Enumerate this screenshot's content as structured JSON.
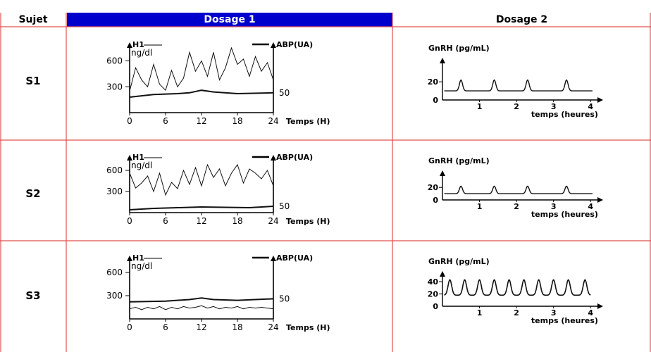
{
  "header": {
    "col_subject": "Sujet",
    "col_dosage1": "Dosage 1",
    "col_dosage2": "Dosage 2",
    "dosage1_color": "#0000cc",
    "border_color": "#e05050"
  },
  "rows": [
    {
      "subject": "S1"
    },
    {
      "subject": "S2"
    },
    {
      "subject": "S3"
    }
  ],
  "chart_data": [
    {
      "type": "line",
      "subject": "S1",
      "panel": "Dosage 1",
      "y_label_left": "H1",
      "y_unit_left": "ng/dl",
      "y_label_right": "ABP(UA)",
      "xlabel": "Temps (H)",
      "x_ticks": [
        "0",
        "6",
        "12",
        "18",
        "24"
      ],
      "y_ticks_left": [
        "600",
        "300"
      ],
      "y_tick_right": "50",
      "xlim": [
        0,
        24
      ],
      "ylim": [
        0,
        800
      ],
      "series": [
        {
          "name": "H1",
          "x": [
            0,
            1,
            2,
            3,
            4,
            5,
            6,
            7,
            8,
            9,
            10,
            11,
            12,
            13,
            14,
            15,
            16,
            17,
            18,
            19,
            20,
            21,
            22,
            23,
            24
          ],
          "values": [
            250,
            520,
            380,
            300,
            560,
            330,
            260,
            490,
            300,
            400,
            700,
            480,
            600,
            420,
            700,
            380,
            520,
            750,
            560,
            620,
            420,
            650,
            480,
            580,
            380
          ]
        },
        {
          "name": "ABP",
          "x": [
            0,
            4,
            8,
            10,
            12,
            14,
            18,
            24
          ],
          "values": [
            180,
            210,
            220,
            230,
            260,
            240,
            220,
            230
          ]
        }
      ]
    },
    {
      "type": "line",
      "subject": "S1",
      "panel": "Dosage 2",
      "title": "GnRH (pg/mL)",
      "xlabel": "temps (heures)",
      "x_ticks": [
        "1",
        "2",
        "3",
        "4"
      ],
      "y_ticks": [
        "20",
        "0"
      ],
      "xlim": [
        0,
        4.3
      ],
      "ylim": [
        0,
        45
      ],
      "pulses_at": [
        0.5,
        1.4,
        2.3,
        3.35
      ],
      "baseline": 10,
      "peak": 22
    },
    {
      "type": "line",
      "subject": "S2",
      "panel": "Dosage 1",
      "y_label_left": "H1",
      "y_unit_left": "ng/dl",
      "y_label_right": "ABP(UA)",
      "xlabel": "Temps (H)",
      "x_ticks": [
        "0",
        "6",
        "12",
        "18",
        "24"
      ],
      "y_ticks_left": [
        "600",
        "300"
      ],
      "y_tick_right": "50",
      "xlim": [
        0,
        24
      ],
      "ylim": [
        0,
        800
      ],
      "series": [
        {
          "name": "H1",
          "x": [
            0,
            1,
            2,
            3,
            4,
            5,
            6,
            7,
            8,
            9,
            10,
            11,
            12,
            13,
            14,
            15,
            16,
            17,
            18,
            19,
            20,
            21,
            22,
            23,
            24
          ],
          "values": [
            560,
            350,
            420,
            520,
            300,
            560,
            250,
            430,
            340,
            600,
            400,
            640,
            380,
            680,
            500,
            620,
            380,
            560,
            680,
            420,
            620,
            560,
            480,
            600,
            380
          ]
        },
        {
          "name": "ABP",
          "x": [
            0,
            4,
            8,
            12,
            16,
            20,
            24
          ],
          "values": [
            40,
            60,
            70,
            80,
            75,
            70,
            90
          ]
        }
      ]
    },
    {
      "type": "line",
      "subject": "S2",
      "panel": "Dosage 2",
      "title": "GnRH (pg/mL)",
      "xlabel": "temps (heures)",
      "x_ticks": [
        "1",
        "2",
        "3",
        "4"
      ],
      "y_ticks": [
        "20",
        "0"
      ],
      "xlim": [
        0,
        4.3
      ],
      "ylim": [
        0,
        45
      ],
      "pulses_at": [
        0.5,
        1.4,
        2.3,
        3.35
      ],
      "baseline": 10,
      "peak": 22
    },
    {
      "type": "line",
      "subject": "S3",
      "panel": "Dosage 1",
      "y_label_left": "H1",
      "y_unit_left": "ng/dl",
      "y_label_right": "ABP(UA)",
      "xlabel": "Temps (H)",
      "x_ticks": [
        "0",
        "6",
        "12",
        "18",
        "24"
      ],
      "y_ticks_left": [
        "600",
        "300"
      ],
      "y_tick_right": "50",
      "xlim": [
        0,
        24
      ],
      "ylim": [
        0,
        800
      ],
      "series": [
        {
          "name": "H1",
          "x": [
            0,
            1,
            2,
            3,
            4,
            5,
            6,
            7,
            8,
            9,
            10,
            11,
            12,
            13,
            14,
            15,
            16,
            17,
            18,
            19,
            20,
            21,
            22,
            23,
            24
          ],
          "values": [
            130,
            150,
            120,
            150,
            130,
            160,
            120,
            150,
            130,
            160,
            140,
            150,
            170,
            140,
            160,
            130,
            150,
            140,
            160,
            130,
            150,
            140,
            150,
            140,
            130
          ]
        },
        {
          "name": "ABP",
          "x": [
            0,
            6,
            10,
            12,
            14,
            18,
            24
          ],
          "values": [
            220,
            230,
            250,
            270,
            250,
            240,
            260
          ]
        }
      ]
    },
    {
      "type": "line",
      "subject": "S3",
      "panel": "Dosage 2",
      "title": "GnRH (pg/mL)",
      "xlabel": "temps (heures)",
      "x_ticks": [
        "1",
        "2",
        "3",
        "4"
      ],
      "y_ticks": [
        "40",
        "20",
        "0"
      ],
      "xlim": [
        0,
        4.3
      ],
      "ylim": [
        0,
        55
      ],
      "pulses_at": [
        0.2,
        0.6,
        1.0,
        1.4,
        1.8,
        2.2,
        2.6,
        3.0,
        3.4,
        3.85
      ],
      "baseline": 18,
      "peak": 43
    }
  ]
}
